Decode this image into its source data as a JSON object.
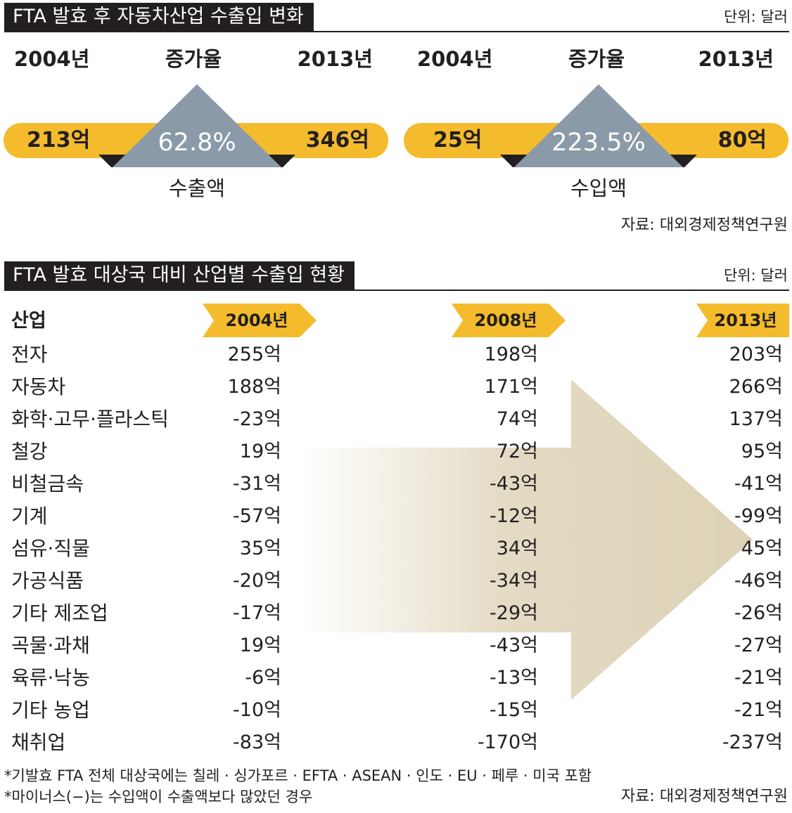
{
  "section1": {
    "title": "FTA 발효 후 자동차산업 수출입 변화",
    "unit": "단위: 달러",
    "source": "자료: 대외경제정책연구원"
  },
  "section2": {
    "title": "FTA 발효 대상국 대비 산업별 수출입 현황",
    "unit": "단위: 달러",
    "industry_header": "산업"
  },
  "footnotes": {
    "note1": "*기발효 FTA 전체 대상국에는 칠레 · 싱가포르 · EFTA · ASEAN · 인도 · EU · 페루 · 미국 포함",
    "note2": "*마이너스(−)는 수입액이 수출액보다 많았던 경우",
    "source": "자료: 대외경제정책연구원"
  },
  "colors": {
    "dark": "#231f20",
    "yellow": "#f4bb2d",
    "triangle": "#8b9aa8",
    "arrow": "#e1d7bf"
  },
  "chart_data": [
    {
      "type": "comparison",
      "title": "수출액",
      "labels": {
        "start": "2004년",
        "rate": "증가율",
        "end": "2013년"
      },
      "start_value": 213,
      "end_value": 346,
      "start_text": "213억",
      "end_text": "346억",
      "growth_text": "62.8%",
      "growth_percent": 62.8
    },
    {
      "type": "comparison",
      "title": "수입액",
      "labels": {
        "start": "2004년",
        "rate": "증가율",
        "end": "2013년"
      },
      "start_value": 25,
      "end_value": 80,
      "start_text": "25억",
      "end_text": "80억",
      "growth_text": "223.5%",
      "growth_percent": 223.5
    },
    {
      "type": "table",
      "columns": [
        "2004년",
        "2008년",
        "2013년"
      ],
      "rows": [
        {
          "industry": "전자",
          "values": [
            "255억",
            "198억",
            "203억"
          ]
        },
        {
          "industry": "자동차",
          "values": [
            "188억",
            "171억",
            "266억"
          ]
        },
        {
          "industry": "화학·고무·플라스틱",
          "values": [
            "-23억",
            "74억",
            "137억"
          ]
        },
        {
          "industry": "철강",
          "values": [
            "19억",
            "72억",
            "95억"
          ]
        },
        {
          "industry": "비철금속",
          "values": [
            "-31억",
            "-43억",
            "-41억"
          ]
        },
        {
          "industry": "기계",
          "values": [
            "-57억",
            "-12억",
            "-99억"
          ]
        },
        {
          "industry": "섬유·직물",
          "values": [
            "35억",
            "34억",
            "45억"
          ]
        },
        {
          "industry": "가공식품",
          "values": [
            "-20억",
            "-34억",
            "-46억"
          ]
        },
        {
          "industry": "기타 제조업",
          "values": [
            "-17억",
            "-29억",
            "-26억"
          ]
        },
        {
          "industry": "곡물·과채",
          "values": [
            "19억",
            "-43억",
            "-27억"
          ]
        },
        {
          "industry": "육류·낙농",
          "values": [
            "-6억",
            "-13억",
            "-21억"
          ]
        },
        {
          "industry": "기타 농업",
          "values": [
            "-10억",
            "-15억",
            "-21억"
          ]
        },
        {
          "industry": "채취업",
          "values": [
            "-83억",
            "-170억",
            "-237억"
          ]
        }
      ]
    }
  ]
}
